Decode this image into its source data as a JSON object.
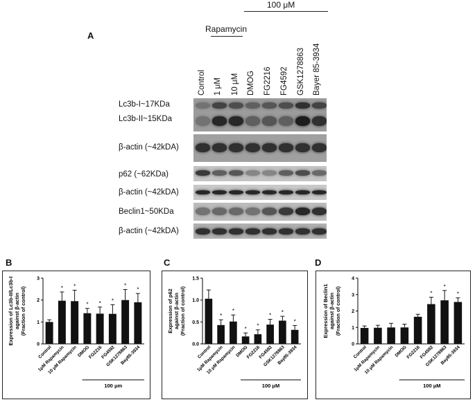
{
  "panelA": {
    "letter": "A",
    "concentration_label": "100 μM",
    "rapamycin_label": "Rapamycin",
    "lanes": [
      "Control",
      "1 μM",
      "10 μM",
      "DMOG",
      "FG2216",
      "FG4592",
      "GSK1278863",
      "Bayer 85-3934"
    ],
    "blots": [
      {
        "label": "Lc3b-I~17KDa"
      },
      {
        "label": "Lc3b-II~15KDa"
      },
      {
        "label": "β-actin (~42kDA)"
      },
      {
        "label": "p62 (~62KDa)"
      },
      {
        "label": "β-actin (~42kDA)"
      },
      {
        "label": "Beclin1~50KDa"
      },
      {
        "label": "β-actin (~42kDA)"
      }
    ],
    "band_intensity": {
      "lc3b_i": [
        0.45,
        0.7,
        0.65,
        0.55,
        0.6,
        0.65,
        0.8,
        0.7
      ],
      "lc3b_ii": [
        0.45,
        0.85,
        0.85,
        0.55,
        0.6,
        0.55,
        0.9,
        0.8
      ],
      "actin1": [
        0.8,
        0.8,
        0.8,
        0.8,
        0.8,
        0.8,
        0.8,
        0.8
      ],
      "p62": [
        0.75,
        0.55,
        0.6,
        0.35,
        0.35,
        0.55,
        0.65,
        0.5
      ],
      "actin2": [
        0.85,
        0.85,
        0.85,
        0.85,
        0.85,
        0.85,
        0.85,
        0.85
      ],
      "beclin1": [
        0.45,
        0.5,
        0.5,
        0.45,
        0.6,
        0.75,
        0.85,
        0.8
      ],
      "actin3": [
        0.8,
        0.8,
        0.8,
        0.8,
        0.8,
        0.8,
        0.8,
        0.8
      ]
    }
  },
  "chart_data": [
    {
      "panel": "B",
      "type": "bar",
      "ylabel": "Expression of Lc3b-II/Lc3b-I against β-actin (Fraction of control)",
      "ylabel_lines": [
        "Expression of Lc3b-II/Lc3b-I",
        "against β-actin",
        "(Fraction of control)"
      ],
      "categories": [
        "Control",
        "1μM Rapamycin",
        "10 μM Rapamycin",
        "DMOG",
        "FG2216",
        "FG4592",
        "GSK1278863",
        "Bay85-3934"
      ],
      "values": [
        1.0,
        1.97,
        1.95,
        1.4,
        1.38,
        1.37,
        2.0,
        1.9
      ],
      "errors": [
        0.1,
        0.4,
        0.5,
        0.22,
        0.3,
        0.42,
        0.48,
        0.4
      ],
      "significant": [
        false,
        true,
        true,
        true,
        true,
        true,
        true,
        true
      ],
      "sig_marker": "*",
      "ylim": [
        0,
        3
      ],
      "yticks": [
        "0",
        "1",
        "2",
        "3"
      ],
      "group_label": "100 μm"
    },
    {
      "panel": "C",
      "type": "bar",
      "ylabel": "Expression of p62 against β-actin (Fraction of control)",
      "ylabel_lines": [
        "Expression of p62",
        "against β-actin",
        "(Fraction of control)"
      ],
      "categories": [
        "Control",
        "1μM Rapamycin",
        "10 μM Rapamycin",
        "DMOG",
        "FG2216",
        "FG4592",
        "GSK1278863",
        "Bay85-3934"
      ],
      "values": [
        1.03,
        0.43,
        0.51,
        0.17,
        0.22,
        0.44,
        0.53,
        0.32
      ],
      "errors": [
        0.2,
        0.12,
        0.15,
        0.08,
        0.1,
        0.12,
        0.1,
        0.1
      ],
      "significant": [
        false,
        true,
        true,
        true,
        true,
        true,
        true,
        true
      ],
      "sig_marker": "*",
      "ylim": [
        0,
        1.5
      ],
      "yticks": [
        "0.0",
        "0.5",
        "1.0",
        "1.5"
      ],
      "group_label": "100 μM"
    },
    {
      "panel": "D",
      "type": "bar",
      "ylabel": "Expression of Beclin1 against β-actin (Fraction of control)",
      "ylabel_lines": [
        "Expression of Beclin1",
        "against β-actin",
        "(Fraction of control)"
      ],
      "categories": [
        "Control",
        "1μM Rapamycin",
        "10 μM Rapamycin",
        "DMOG",
        "FG2216",
        "FG4592",
        "GSK1278863",
        "Bay85-3934"
      ],
      "values": [
        0.97,
        0.98,
        1.0,
        1.0,
        1.65,
        2.42,
        2.65,
        2.55
      ],
      "errors": [
        0.12,
        0.15,
        0.25,
        0.2,
        0.15,
        0.42,
        0.6,
        0.25
      ],
      "significant": [
        false,
        false,
        false,
        false,
        false,
        true,
        true,
        true
      ],
      "sig_marker": "*",
      "ylim": [
        0,
        4
      ],
      "yticks": [
        "0",
        "1",
        "2",
        "3",
        "4"
      ],
      "group_label": "100 μM"
    }
  ]
}
